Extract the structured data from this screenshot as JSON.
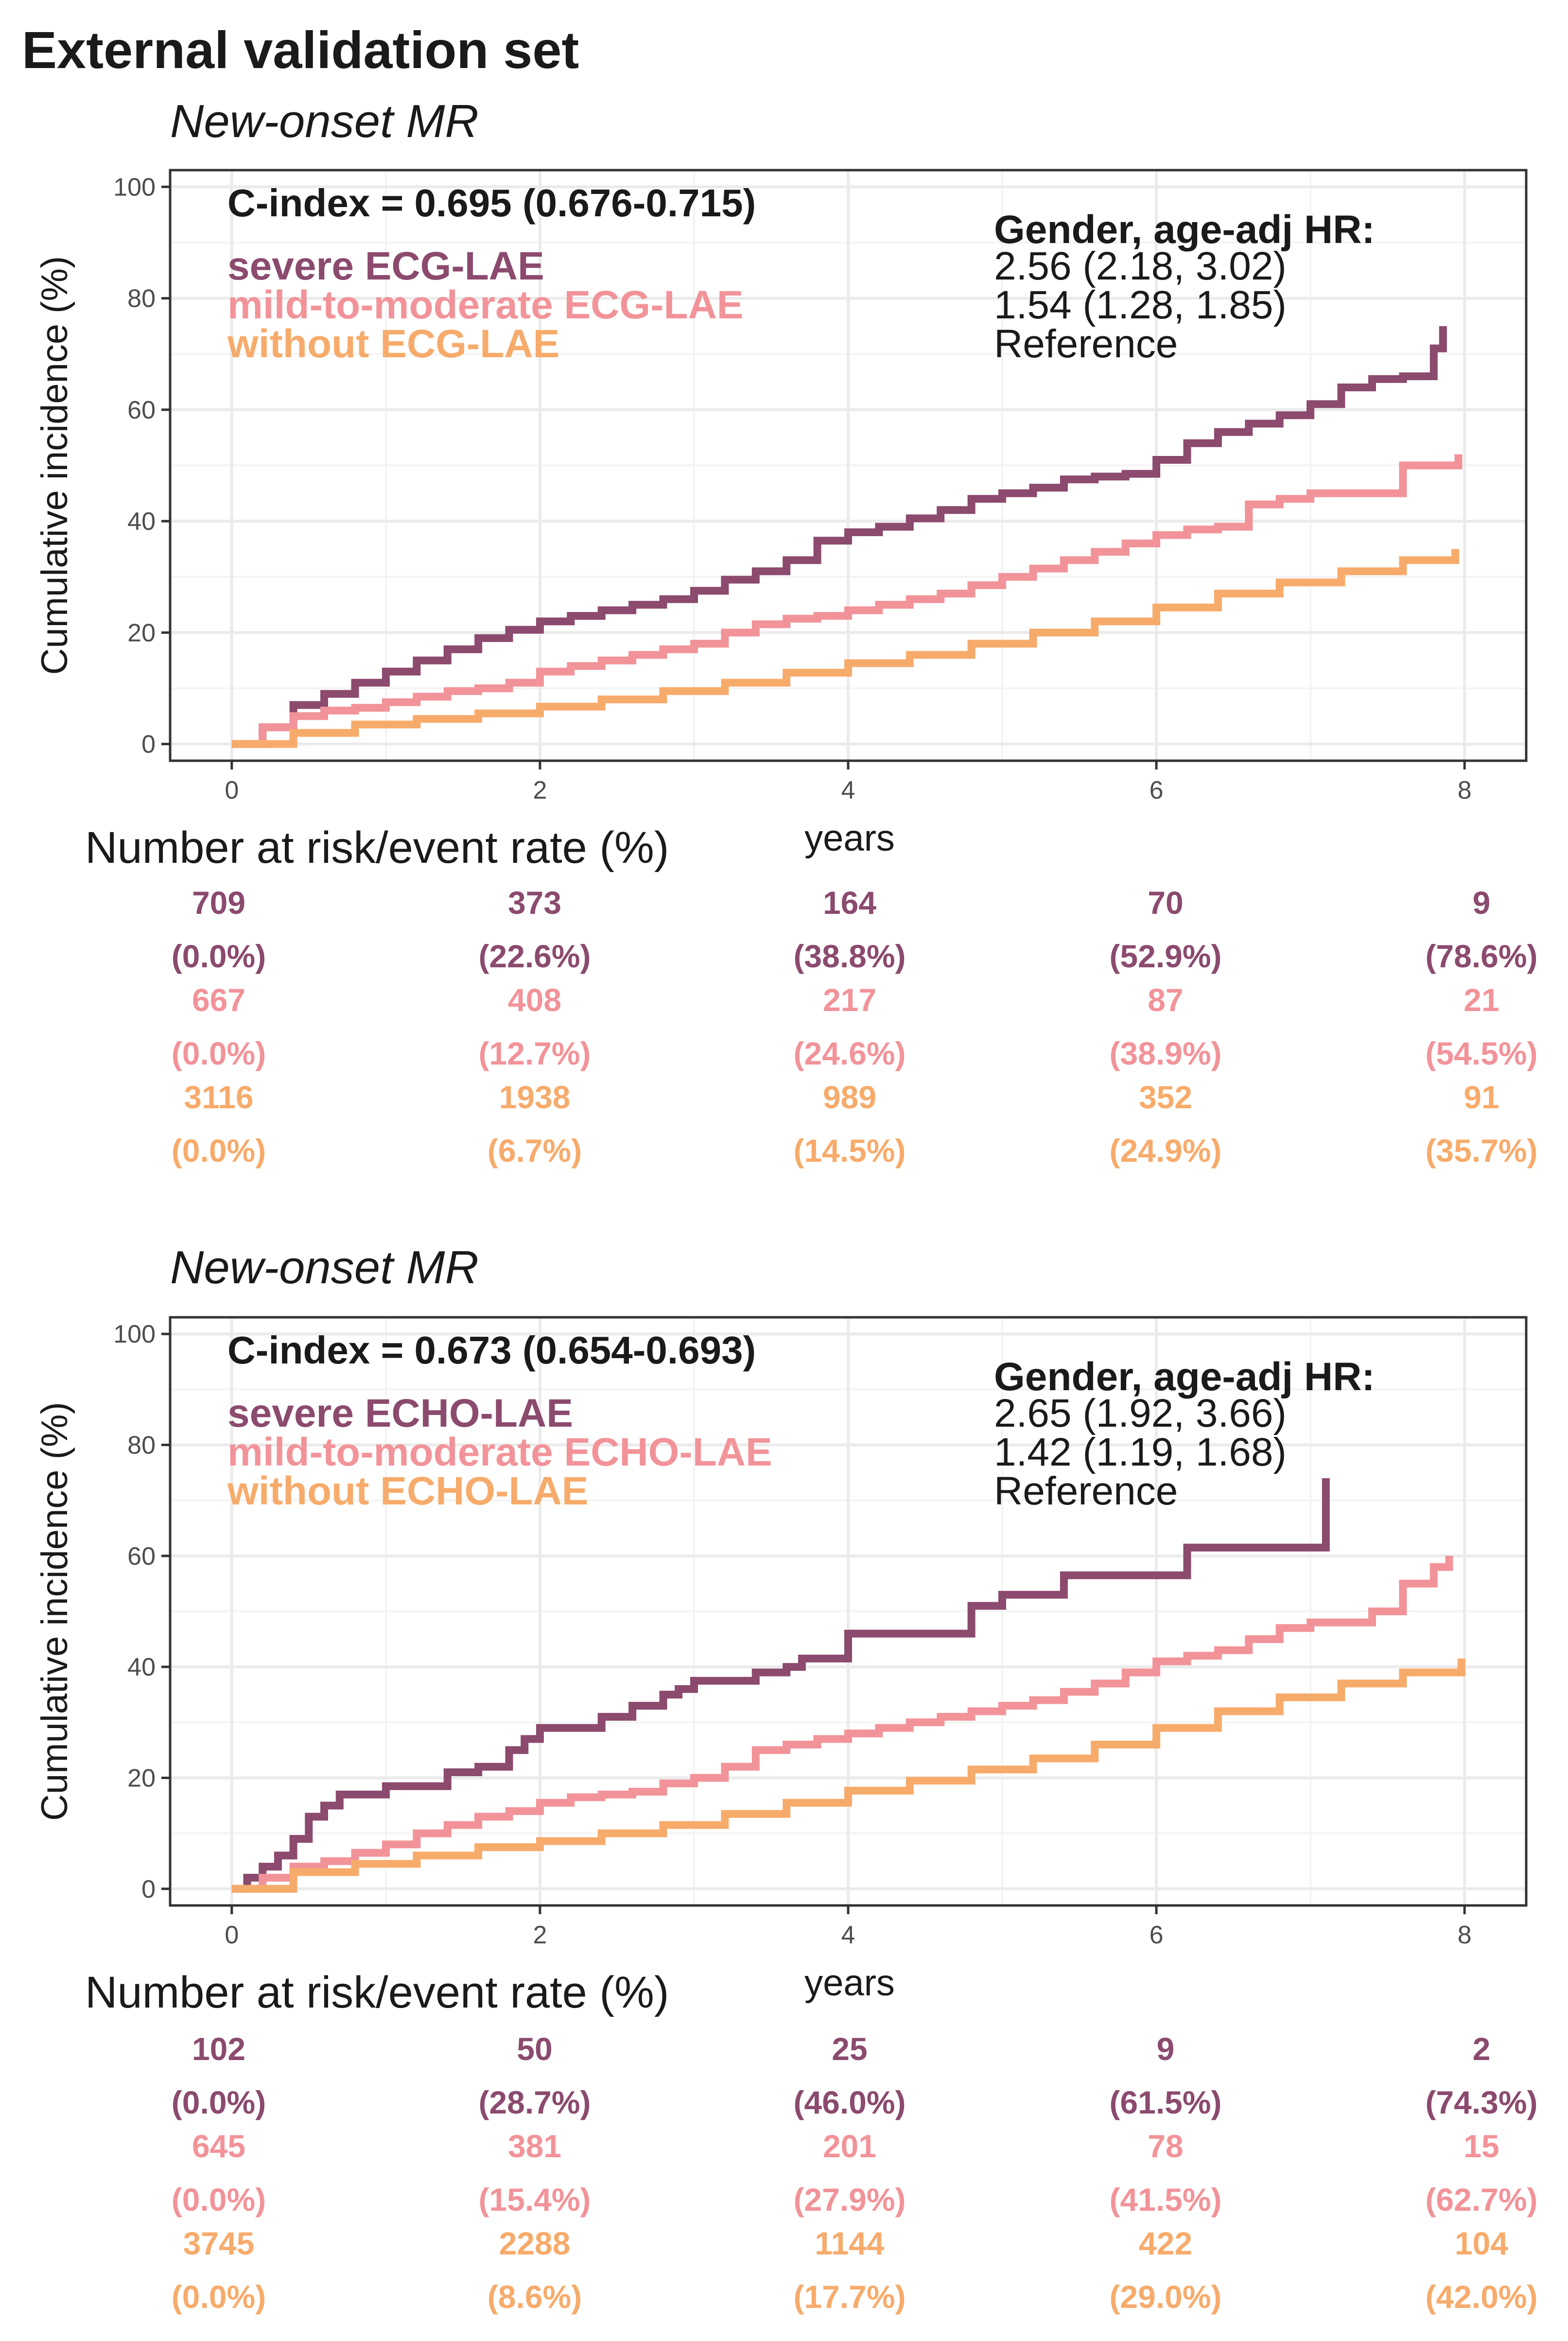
{
  "page_title": "External validation set",
  "colors": {
    "severe": "#8B4A6E",
    "mild": "#F29399",
    "without": "#F7AB6B",
    "grid": "#ebebeb",
    "border": "#333333"
  },
  "panels": [
    {
      "subtitle": "New-onset MR",
      "cindex": "C-index = 0.695 (0.676-0.715)",
      "hr_header": "Gender, age-adj HR:",
      "legend": [
        {
          "label": "severe ECG-LAE",
          "hr": "2.56 (2.18, 3.02)"
        },
        {
          "label": "mild-to-moderate ECG-LAE",
          "hr": "1.54 (1.28, 1.85)"
        },
        {
          "label": "without ECG-LAE",
          "hr": "Reference"
        }
      ],
      "ylabel": "Cumulative incidence (%)",
      "xlabel": "years",
      "risk_title": "Number at risk/event rate (%)",
      "risk_table": [
        {
          "counts": [
            "709",
            "373",
            "164",
            "70",
            "9"
          ],
          "rates": [
            "(0.0%)",
            "(22.6%)",
            "(38.8%)",
            "(52.9%)",
            "(78.6%)"
          ]
        },
        {
          "counts": [
            "667",
            "408",
            "217",
            "87",
            "21"
          ],
          "rates": [
            "(0.0%)",
            "(12.7%)",
            "(24.6%)",
            "(38.9%)",
            "(54.5%)"
          ]
        },
        {
          "counts": [
            "3116",
            "1938",
            "989",
            "352",
            "91"
          ],
          "rates": [
            "(0.0%)",
            "(6.7%)",
            "(14.5%)",
            "(24.9%)",
            "(35.7%)"
          ]
        }
      ]
    },
    {
      "subtitle": "New-onset MR",
      "cindex": "C-index = 0.673 (0.654-0.693)",
      "hr_header": "Gender, age-adj HR:",
      "legend": [
        {
          "label": "severe ECHO-LAE",
          "hr": "2.65 (1.92, 3.66)"
        },
        {
          "label": "mild-to-moderate ECHO-LAE",
          "hr": "1.42 (1.19, 1.68)"
        },
        {
          "label": "without ECHO-LAE",
          "hr": "Reference"
        }
      ],
      "ylabel": "Cumulative incidence (%)",
      "xlabel": "years",
      "risk_title": "Number at risk/event rate (%)",
      "risk_table": [
        {
          "counts": [
            "102",
            "50",
            "25",
            "9",
            "2"
          ],
          "rates": [
            "(0.0%)",
            "(28.7%)",
            "(46.0%)",
            "(61.5%)",
            "(74.3%)"
          ]
        },
        {
          "counts": [
            "645",
            "381",
            "201",
            "78",
            "15"
          ],
          "rates": [
            "(0.0%)",
            "(15.4%)",
            "(27.9%)",
            "(41.5%)",
            "(62.7%)"
          ]
        },
        {
          "counts": [
            "3745",
            "2288",
            "1144",
            "422",
            "104"
          ],
          "rates": [
            "(0.0%)",
            "(8.6%)",
            "(17.7%)",
            "(29.0%)",
            "(42.0%)"
          ]
        }
      ]
    }
  ],
  "chart_data": [
    {
      "type": "line",
      "title": "New-onset MR",
      "xlabel": "years",
      "ylabel": "Cumulative incidence (%)",
      "xlim": [
        -0.4,
        8.4
      ],
      "ylim": [
        -3,
        103
      ],
      "xticks": [
        0,
        2,
        4,
        6,
        8
      ],
      "yticks": [
        0,
        20,
        40,
        60,
        80,
        100
      ],
      "grid": true,
      "series": [
        {
          "name": "severe ECG-LAE",
          "x": [
            0,
            0.2,
            0.4,
            0.6,
            0.8,
            1.0,
            1.2,
            1.4,
            1.6,
            1.8,
            2.0,
            2.2,
            2.4,
            2.6,
            2.8,
            3.0,
            3.2,
            3.4,
            3.6,
            3.8,
            4.0,
            4.2,
            4.4,
            4.6,
            4.8,
            5.0,
            5.2,
            5.4,
            5.6,
            5.8,
            6.0,
            6.2,
            6.4,
            6.6,
            6.8,
            7.0,
            7.2,
            7.4,
            7.6,
            7.8,
            7.86
          ],
          "y": [
            0,
            3,
            7,
            9,
            11,
            13,
            15,
            17,
            19,
            20.5,
            22,
            23,
            24,
            25,
            26,
            27.5,
            29.5,
            31,
            33,
            36.5,
            38,
            39,
            40.5,
            42,
            44,
            45,
            46,
            47.5,
            48,
            48.5,
            51,
            54,
            56,
            57.5,
            59,
            61,
            64,
            65.5,
            66,
            71,
            75
          ]
        },
        {
          "name": "mild-to-moderate ECG-LAE",
          "x": [
            0,
            0.2,
            0.4,
            0.6,
            0.8,
            1.0,
            1.2,
            1.4,
            1.6,
            1.8,
            2.0,
            2.2,
            2.4,
            2.6,
            2.8,
            3.0,
            3.2,
            3.4,
            3.6,
            3.8,
            4.0,
            4.2,
            4.4,
            4.6,
            4.8,
            5.0,
            5.2,
            5.4,
            5.6,
            5.8,
            6.0,
            6.2,
            6.4,
            6.6,
            6.8,
            7.0,
            7.2,
            7.4,
            7.6,
            7.8,
            7.96
          ],
          "y": [
            0,
            3,
            5,
            6,
            6.5,
            7.5,
            8.5,
            9.5,
            10,
            11,
            13,
            14,
            15,
            16,
            17,
            18,
            20,
            21.5,
            22.5,
            23,
            24,
            25,
            26,
            27,
            28.5,
            30,
            31.5,
            33,
            34.5,
            36,
            37.5,
            38.5,
            39,
            43,
            44,
            45,
            45,
            45,
            50,
            50,
            52
          ]
        },
        {
          "name": "without ECG-LAE",
          "x": [
            0,
            0.4,
            0.8,
            1.2,
            1.6,
            2.0,
            2.4,
            2.8,
            3.2,
            3.6,
            4.0,
            4.4,
            4.8,
            5.2,
            5.6,
            6.0,
            6.4,
            6.8,
            7.2,
            7.6,
            7.94
          ],
          "y": [
            0,
            2,
            3.5,
            4.5,
            5.5,
            6.7,
            8,
            9.5,
            11,
            12.8,
            14.5,
            16,
            18,
            20,
            22,
            24.5,
            27,
            29,
            31,
            33,
            35
          ]
        }
      ]
    },
    {
      "type": "line",
      "title": "New-onset MR",
      "xlabel": "years",
      "ylabel": "Cumulative incidence (%)",
      "xlim": [
        -0.4,
        8.4
      ],
      "ylim": [
        -3,
        103
      ],
      "xticks": [
        0,
        2,
        4,
        6,
        8
      ],
      "yticks": [
        0,
        20,
        40,
        60,
        80,
        100
      ],
      "grid": true,
      "series": [
        {
          "name": "severe ECHO-LAE",
          "x": [
            0,
            0.1,
            0.2,
            0.3,
            0.4,
            0.5,
            0.6,
            0.7,
            1.0,
            1.2,
            1.4,
            1.6,
            1.8,
            1.9,
            2.0,
            2.4,
            2.6,
            2.8,
            2.9,
            3.0,
            3.4,
            3.6,
            3.7,
            4.0,
            4.6,
            4.8,
            5.0,
            5.4,
            6.0,
            6.2,
            6.6,
            7.05,
            7.1
          ],
          "y": [
            0,
            2,
            4,
            6,
            9,
            13,
            15,
            17,
            18.5,
            18.5,
            21,
            22,
            25,
            27,
            29,
            31,
            33,
            35,
            36,
            37.5,
            39,
            40,
            41.5,
            46,
            46,
            51,
            53,
            56.5,
            56.5,
            61.5,
            61.5,
            61.5,
            74
          ]
        },
        {
          "name": "mild-to-moderate ECHO-LAE",
          "x": [
            0,
            0.2,
            0.4,
            0.6,
            0.8,
            1.0,
            1.2,
            1.4,
            1.6,
            1.8,
            2.0,
            2.2,
            2.4,
            2.6,
            2.8,
            3.0,
            3.2,
            3.4,
            3.6,
            3.8,
            4.0,
            4.2,
            4.4,
            4.6,
            4.8,
            5.0,
            5.2,
            5.4,
            5.6,
            5.8,
            6.0,
            6.2,
            6.4,
            6.6,
            6.8,
            7.0,
            7.2,
            7.4,
            7.6,
            7.8,
            7.9
          ],
          "y": [
            0,
            2,
            4,
            5,
            6.5,
            8,
            10,
            11.5,
            13,
            14,
            15.5,
            16.5,
            17,
            17.5,
            19,
            20,
            22,
            25,
            26,
            27,
            28,
            29,
            30,
            31,
            32,
            33,
            34,
            35.5,
            37,
            39,
            41,
            42,
            43,
            45,
            47,
            48,
            48,
            50,
            55,
            58,
            60
          ]
        },
        {
          "name": "without ECHO-LAE",
          "x": [
            0,
            0.4,
            0.8,
            1.2,
            1.6,
            2.0,
            2.4,
            2.8,
            3.2,
            3.6,
            4.0,
            4.4,
            4.8,
            5.2,
            5.6,
            6.0,
            6.4,
            6.8,
            7.2,
            7.6,
            7.98
          ],
          "y": [
            0,
            3,
            4.5,
            6,
            7.5,
            8.6,
            10,
            11.5,
            13.5,
            15.5,
            17.7,
            19.5,
            21.5,
            23.5,
            26,
            29,
            32,
            34.5,
            37,
            39,
            41.5
          ]
        }
      ]
    }
  ]
}
